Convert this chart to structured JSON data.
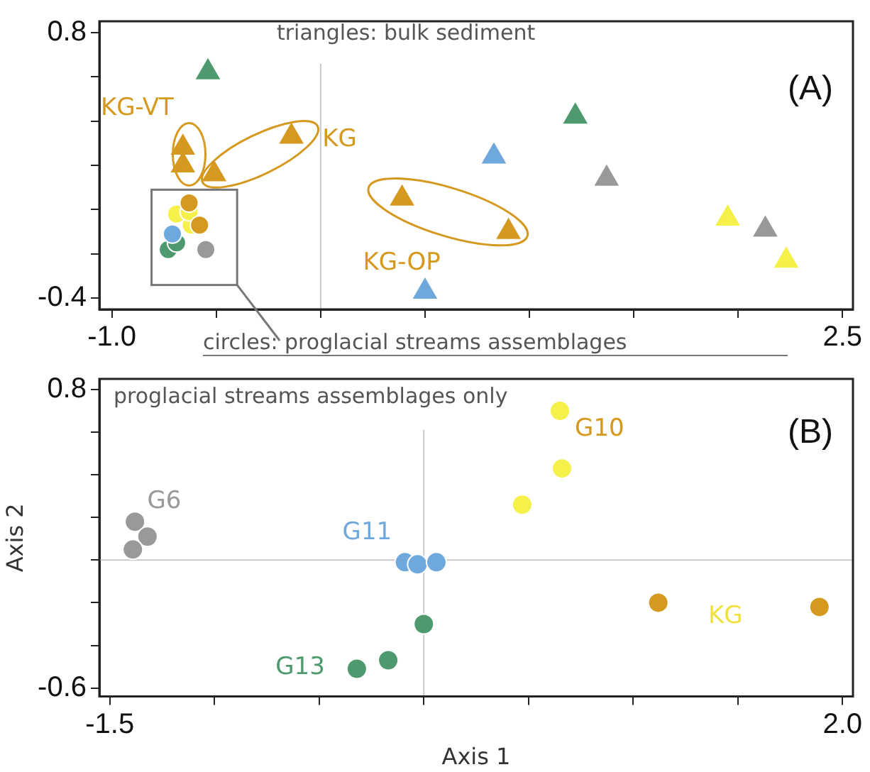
{
  "chart_data": [
    {
      "type": "scatter",
      "title": "(A)",
      "annotations": [
        "triangles: bulk sediment",
        "circles: proglacial streams assemblages",
        "KG-VT",
        "KG",
        "KG-OP"
      ],
      "xlim": [
        -1.06,
        2.55
      ],
      "ylim": [
        -0.45,
        0.85
      ],
      "xticks": [
        {
          "value": -1,
          "label": "-1.0"
        },
        {
          "value": -0.5,
          "label": null
        },
        {
          "value": 0,
          "label": null
        },
        {
          "value": 0.5,
          "label": null
        },
        {
          "value": 1,
          "label": null
        },
        {
          "value": 1.5,
          "label": null
        },
        {
          "value": 2,
          "label": null
        },
        2.5
      ],
      "yticks": [
        -0.4,
        {
          "value": -0.2,
          "label": null
        },
        {
          "value": 0,
          "label": null
        },
        {
          "value": 0.2,
          "label": null
        },
        {
          "value": 0.4,
          "label": null
        },
        {
          "value": 0.6,
          "label": null
        },
        0.8
      ],
      "ref_lines": [
        {
          "axis": "x",
          "value": 0,
          "color": "#c8c8c8"
        }
      ],
      "series": [
        {
          "color": "#4e9a6e",
          "marker": "triangle",
          "x": [
            -0.54,
            1.22
          ],
          "values": [
            0.62,
            0.42
          ]
        },
        {
          "color": "#6fa8dc",
          "marker": "triangle",
          "x": [
            0.83,
            0.5
          ],
          "values": [
            0.24,
            -0.37
          ]
        },
        {
          "color": "#999999",
          "marker": "triangle",
          "x": [
            1.37,
            2.13
          ],
          "values": [
            0.14,
            -0.09
          ]
        },
        {
          "color": "#f5f04a",
          "marker": "triangle",
          "x": [
            1.95,
            2.23
          ],
          "values": [
            -0.04,
            -0.23
          ]
        },
        {
          "color": "#d4991e",
          "marker": "triangle",
          "x": [
            -0.14,
            -0.66,
            -0.66,
            -0.51,
            0.39,
            0.9
          ],
          "values": [
            0.33,
            0.28,
            0.2,
            0.16,
            0.05,
            -0.1
          ]
        },
        {
          "color": "#d4991e",
          "marker": "circle",
          "x": [
            -0.63,
            -0.58
          ],
          "values": [
            0.03,
            -0.07
          ]
        },
        {
          "color": "#f5f04a",
          "marker": "circle",
          "x": [
            -0.62,
            -0.69,
            -0.63
          ],
          "values": [
            -0.07,
            -0.02,
            -0.01
          ]
        },
        {
          "color": "#6fa8dc",
          "marker": "circle",
          "x": [
            -0.71
          ],
          "values": [
            -0.11
          ]
        },
        {
          "color": "#4e9a6e",
          "marker": "circle",
          "x": [
            -0.73,
            -0.69
          ],
          "values": [
            -0.18,
            -0.15
          ]
        },
        {
          "color": "#999999",
          "marker": "circle",
          "x": [
            -0.55
          ],
          "values": [
            -0.18
          ]
        }
      ]
    },
    {
      "type": "scatter",
      "title": "(B)",
      "xlabel": "Axis 1",
      "ylabel": "Axis 2",
      "annotations": [
        "proglacial streams assemblages only",
        "G6",
        "G11",
        "G13",
        "G10",
        "KG"
      ],
      "xlim": [
        -1.55,
        2.05
      ],
      "ylim": [
        -0.64,
        0.85
      ],
      "xticks": [
        -1.5,
        {
          "value": -1,
          "label": null
        },
        {
          "value": -0.5,
          "label": null
        },
        {
          "value": 0,
          "label": null
        },
        {
          "value": 0.5,
          "label": null
        },
        {
          "value": 1,
          "label": null
        },
        {
          "value": 1.5,
          "label": null
        },
        {
          "value": 2,
          "label": "2.0"
        }
      ],
      "yticks": [
        -0.6,
        {
          "value": -0.4,
          "label": null
        },
        {
          "value": -0.2,
          "label": null
        },
        {
          "value": 0,
          "label": null
        },
        {
          "value": 0.2,
          "label": null
        },
        {
          "value": 0.4,
          "label": null
        },
        {
          "value": 0.6,
          "label": null
        },
        0.8
      ],
      "ref_lines": [
        {
          "axis": "x",
          "value": 0,
          "color": "#c8c8c8"
        },
        {
          "axis": "y",
          "value": 0,
          "color": "#c8c8c8"
        }
      ],
      "marker": "circle",
      "series": [
        {
          "color": "#999999",
          "x": [
            -1.38,
            -1.32,
            -1.39
          ],
          "values": [
            0.18,
            0.11,
            0.05
          ]
        },
        {
          "color": "#6fa8dc",
          "x": [
            -0.09,
            -0.03,
            0.06
          ],
          "values": [
            -0.01,
            -0.02,
            -0.01
          ]
        },
        {
          "color": "#4e9a6e",
          "x": [
            0.0,
            -0.17,
            -0.32
          ],
          "values": [
            -0.3,
            -0.47,
            -0.51
          ]
        },
        {
          "color": "#f5f04a",
          "x": [
            0.65,
            0.66,
            0.47
          ],
          "values": [
            0.7,
            0.43,
            0.26
          ]
        },
        {
          "color": "#d4991e",
          "x": [
            1.12,
            1.89
          ],
          "values": [
            -0.2,
            -0.22
          ]
        }
      ]
    }
  ]
}
